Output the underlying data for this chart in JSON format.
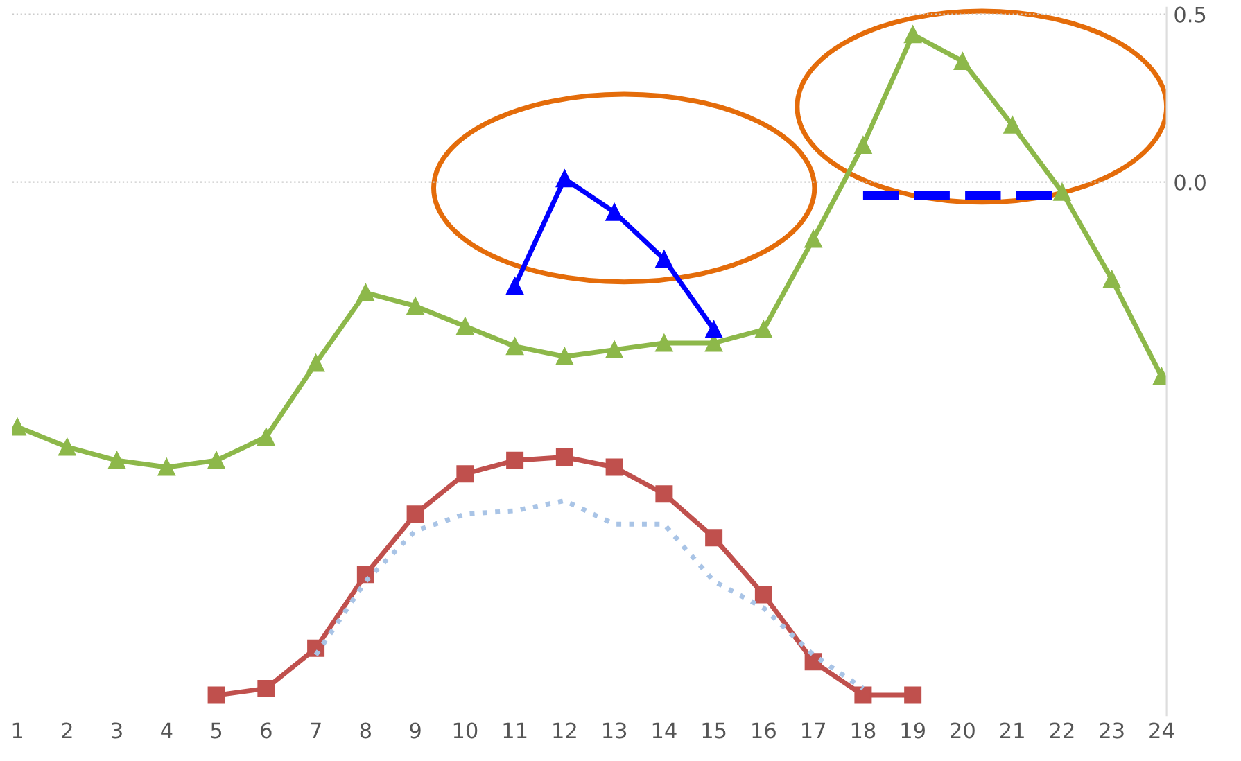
{
  "chart_data": {
    "type": "line",
    "categories": [
      "1",
      "2",
      "3",
      "4",
      "5",
      "6",
      "7",
      "8",
      "9",
      "10",
      "11",
      "12",
      "13",
      "14",
      "15",
      "16",
      "17",
      "18",
      "19",
      "20",
      "21",
      "22",
      "23",
      "24"
    ],
    "series": [
      {
        "color": "#8db84a",
        "marker": "triangle",
        "line_style": "solid",
        "values": [
          -0.73,
          -0.79,
          -0.83,
          -0.85,
          -0.83,
          -0.76,
          -0.54,
          -0.33,
          -0.37,
          -0.43,
          -0.49,
          -0.52,
          -0.5,
          -0.48,
          -0.48,
          -0.44,
          -0.17,
          0.11,
          0.44,
          0.36,
          0.17,
          -0.03,
          -0.29,
          -0.58
        ]
      },
      {
        "color": "#c0504d",
        "marker": "square",
        "line_style": "solid",
        "values": [
          null,
          null,
          null,
          null,
          -1.53,
          -1.51,
          -1.39,
          -1.17,
          -0.99,
          -0.87,
          -0.83,
          -0.82,
          -0.85,
          -0.93,
          -1.06,
          -1.23,
          -1.43,
          -1.53,
          -1.53,
          null,
          null,
          null,
          null,
          null
        ]
      },
      {
        "color": "#a9c4e6",
        "marker": "none",
        "line_style": "dotted",
        "values": [
          null,
          null,
          null,
          null,
          null,
          null,
          -1.41,
          -1.19,
          -1.04,
          -0.99,
          -0.98,
          -0.95,
          -1.02,
          -1.02,
          -1.19,
          -1.27,
          -1.41,
          -1.51,
          null,
          null,
          null,
          null,
          null,
          null
        ]
      },
      {
        "color": "#0000ff",
        "marker": "triangle",
        "line_style": "solid",
        "values": [
          null,
          null,
          null,
          null,
          null,
          null,
          null,
          null,
          null,
          null,
          -0.31,
          0.01,
          -0.09,
          -0.23,
          -0.44,
          null,
          null,
          null,
          null,
          null,
          null,
          null,
          null,
          null
        ]
      },
      {
        "color": "#0000ff",
        "marker": "none",
        "line_style": "dashed",
        "values": [
          null,
          null,
          null,
          null,
          null,
          null,
          null,
          null,
          null,
          null,
          null,
          null,
          null,
          null,
          null,
          null,
          null,
          -0.04,
          -0.04,
          -0.04,
          -0.04,
          -0.04,
          null,
          null
        ]
      }
    ],
    "ylim": [
      -1.59,
      0.52
    ],
    "yticks": [
      {
        "value": 0.0,
        "label": "0.0"
      },
      {
        "value": 0.5,
        "label": "0.5"
      }
    ],
    "grid": "y",
    "legend": false
  }
}
